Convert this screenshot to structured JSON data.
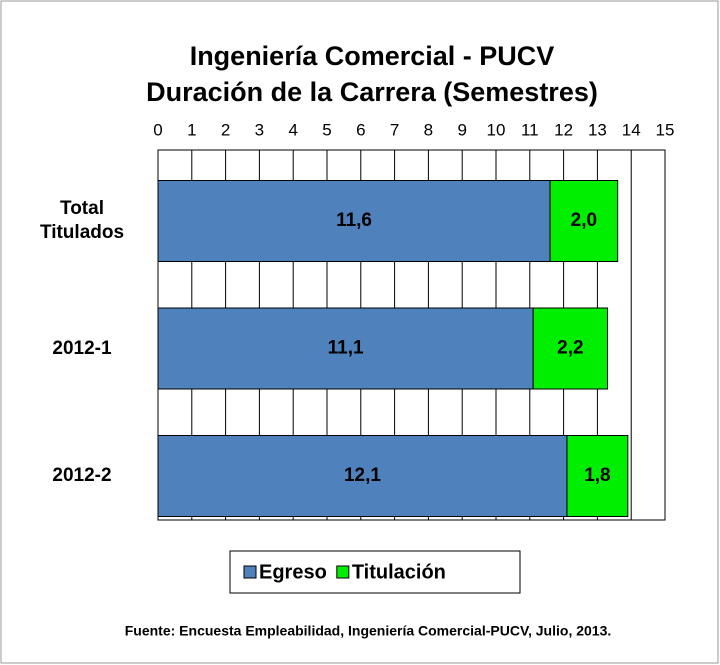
{
  "chart_data": {
    "type": "bar",
    "orientation": "horizontal",
    "stacked": true,
    "title": [
      "Ingeniería Comercial - PUCV",
      "Duración de la Carrera (Semestres)"
    ],
    "categories": [
      "Total Titulados",
      "2012-1",
      "2012-2"
    ],
    "series": [
      {
        "name": "Egreso",
        "color": "#4f81bd",
        "values": [
          11.6,
          11.1,
          12.1
        ],
        "value_labels": [
          "11,6",
          "11,1",
          "12,1"
        ]
      },
      {
        "name": "Titulación",
        "color": "#00ee00",
        "values": [
          2.0,
          2.2,
          1.8
        ],
        "value_labels": [
          "2,0",
          "2,2",
          "1,8"
        ]
      }
    ],
    "xlim": [
      0,
      15
    ],
    "xticks": [
      0,
      1,
      2,
      3,
      4,
      5,
      6,
      7,
      8,
      9,
      10,
      11,
      12,
      13,
      14,
      15
    ],
    "grid": true,
    "legend": "bottom",
    "footnote": "Fuente: Encuesta Empleabilidad, Ingeniería Comercial-PUCV, Julio, 2013."
  }
}
